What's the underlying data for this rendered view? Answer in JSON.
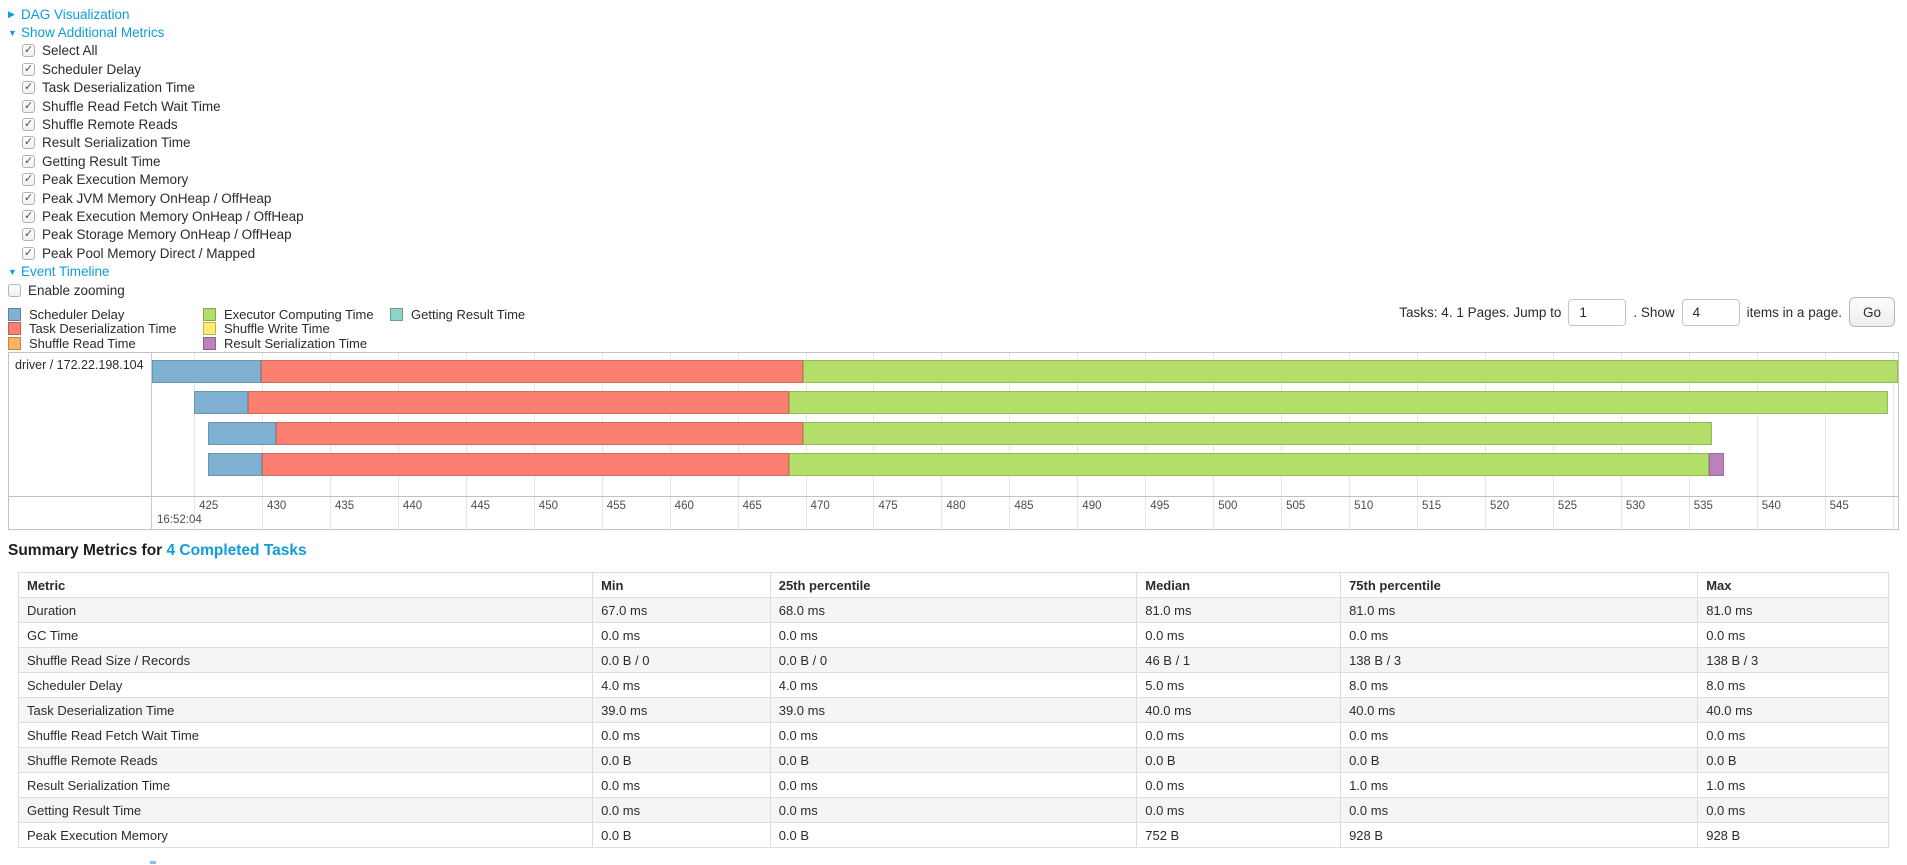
{
  "sections": {
    "dag": {
      "arrow": "▶",
      "label": "DAG Visualization"
    },
    "additional_metrics": {
      "arrow": "▼",
      "label": "Show Additional Metrics"
    },
    "event_timeline": {
      "arrow": "▼",
      "label": "Event Timeline"
    }
  },
  "metric_checkboxes": [
    {
      "label": "Select All",
      "checked": true
    },
    {
      "label": "Scheduler Delay",
      "checked": true
    },
    {
      "label": "Task Deserialization Time",
      "checked": true
    },
    {
      "label": "Shuffle Read Fetch Wait Time",
      "checked": true
    },
    {
      "label": "Shuffle Remote Reads",
      "checked": true
    },
    {
      "label": "Result Serialization Time",
      "checked": true
    },
    {
      "label": "Getting Result Time",
      "checked": true
    },
    {
      "label": "Peak Execution Memory",
      "checked": true
    },
    {
      "label": "Peak JVM Memory OnHeap / OffHeap",
      "checked": true
    },
    {
      "label": "Peak Execution Memory OnHeap / OffHeap",
      "checked": true
    },
    {
      "label": "Peak Storage Memory OnHeap / OffHeap",
      "checked": true
    },
    {
      "label": "Peak Pool Memory Direct / Mapped",
      "checked": true
    }
  ],
  "enable_zooming": {
    "label": "Enable zooming",
    "checked": false
  },
  "legend": {
    "items": [
      {
        "id": "scheduler_delay",
        "label": "Scheduler Delay",
        "color": "#80B1D3",
        "col": 0
      },
      {
        "id": "task_deserialization",
        "label": "Task Deserialization Time",
        "color": "#FB8072",
        "col": 0
      },
      {
        "id": "shuffle_read",
        "label": "Shuffle Read Time",
        "color": "#FDB462",
        "col": 0
      },
      {
        "id": "executor_computing",
        "label": "Executor Computing Time",
        "color": "#B3DE69",
        "col": 1
      },
      {
        "id": "shuffle_write",
        "label": "Shuffle Write Time",
        "color": "#FFED6F",
        "col": 1
      },
      {
        "id": "result_serialization",
        "label": "Result Serialization Time",
        "color": "#BC80BD",
        "col": 1
      },
      {
        "id": "getting_result",
        "label": "Getting Result Time",
        "color": "#8DD3C7",
        "col": 2
      }
    ]
  },
  "pagination": {
    "prefix": "Tasks: 4. 1 Pages. Jump to",
    "jump_value": "1",
    "mid": ". Show",
    "show_value": "4",
    "suffix": "items in a page.",
    "go_label": "Go"
  },
  "chart_data": {
    "type": "timeline-gantt",
    "group_label": "driver / 172.22.198.104",
    "x_unit": "milliseconds within second 16:52:04",
    "x_domain": [
      421.9,
      550.4
    ],
    "ticks": [
      425,
      430,
      435,
      440,
      445,
      450,
      455,
      460,
      465,
      470,
      475,
      480,
      485,
      490,
      495,
      500,
      505,
      510,
      515,
      520,
      525,
      530,
      535,
      540,
      545,
      550
    ],
    "major_label": "16:52:04",
    "tasks": [
      {
        "segments": [
          {
            "type": "scheduler_delay",
            "start": 421.9,
            "end": 429.9
          },
          {
            "type": "task_deserialization",
            "start": 429.9,
            "end": 469.8
          },
          {
            "type": "executor_computing",
            "start": 469.8,
            "end": 550.4
          }
        ]
      },
      {
        "segments": [
          {
            "type": "scheduler_delay",
            "start": 425.0,
            "end": 429.0
          },
          {
            "type": "task_deserialization",
            "start": 429.0,
            "end": 468.8
          },
          {
            "type": "executor_computing",
            "start": 468.8,
            "end": 549.7
          }
        ]
      },
      {
        "segments": [
          {
            "type": "scheduler_delay",
            "start": 426.0,
            "end": 431.0
          },
          {
            "type": "task_deserialization",
            "start": 431.0,
            "end": 469.8
          },
          {
            "type": "executor_computing",
            "start": 469.8,
            "end": 536.7
          }
        ]
      },
      {
        "segments": [
          {
            "type": "scheduler_delay",
            "start": 426.0,
            "end": 430.0
          },
          {
            "type": "task_deserialization",
            "start": 430.0,
            "end": 468.8
          },
          {
            "type": "executor_computing",
            "start": 468.8,
            "end": 536.5
          },
          {
            "type": "result_serialization",
            "start": 536.5,
            "end": 537.6
          }
        ]
      }
    ]
  },
  "summary": {
    "title_prefix": "Summary Metrics for ",
    "title_link": "4 Completed Tasks"
  },
  "table": {
    "columns": [
      "Metric",
      "Min",
      "25th percentile",
      "Median",
      "75th percentile",
      "Max"
    ],
    "rows": [
      [
        "Duration",
        "67.0 ms",
        "68.0 ms",
        "81.0 ms",
        "81.0 ms",
        "81.0 ms"
      ],
      [
        "GC Time",
        "0.0 ms",
        "0.0 ms",
        "0.0 ms",
        "0.0 ms",
        "0.0 ms"
      ],
      [
        "Shuffle Read Size / Records",
        "0.0 B / 0",
        "0.0 B / 0",
        "46 B / 1",
        "138 B / 3",
        "138 B / 3"
      ],
      [
        "Scheduler Delay",
        "4.0 ms",
        "4.0 ms",
        "5.0 ms",
        "8.0 ms",
        "8.0 ms"
      ],
      [
        "Task Deserialization Time",
        "39.0 ms",
        "39.0 ms",
        "40.0 ms",
        "40.0 ms",
        "40.0 ms"
      ],
      [
        "Shuffle Read Fetch Wait Time",
        "0.0 ms",
        "0.0 ms",
        "0.0 ms",
        "0.0 ms",
        "0.0 ms"
      ],
      [
        "Shuffle Remote Reads",
        "0.0 B",
        "0.0 B",
        "0.0 B",
        "0.0 B",
        "0.0 B"
      ],
      [
        "Result Serialization Time",
        "0.0 ms",
        "0.0 ms",
        "0.0 ms",
        "1.0 ms",
        "1.0 ms"
      ],
      [
        "Getting Result Time",
        "0.0 ms",
        "0.0 ms",
        "0.0 ms",
        "0.0 ms",
        "0.0 ms"
      ],
      [
        "Peak Execution Memory",
        "0.0 B",
        "0.0 B",
        "752 B",
        "928 B",
        "928 B"
      ]
    ]
  },
  "colors": {
    "link_blue": "#0e9dd9",
    "grid_line": "#e7e7e7",
    "table_stripe": "#f5f5f5",
    "table_border": "#dddddd"
  }
}
